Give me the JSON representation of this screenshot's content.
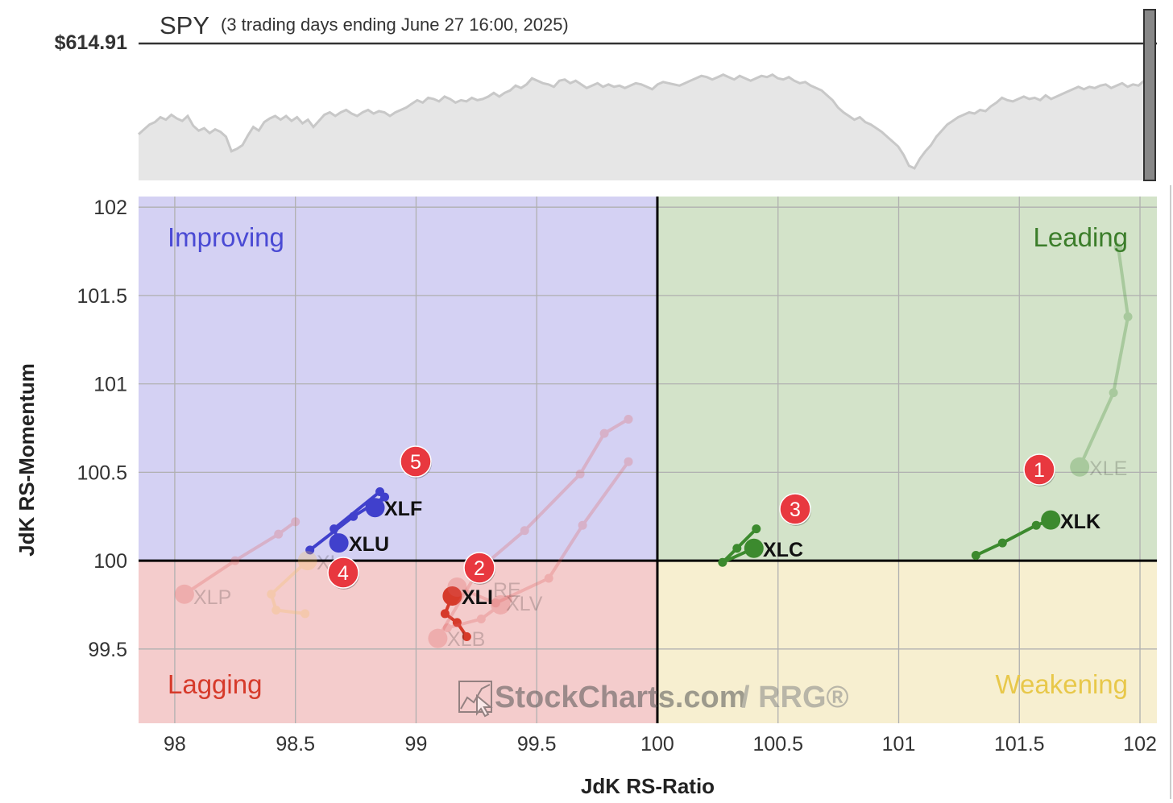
{
  "header": {
    "symbol": "SPY",
    "subtitle": "(3 trading days ending June 27 16:00, 2025)",
    "price": "$614.91"
  },
  "spy_line": [
    0.32,
    0.36,
    0.4,
    0.42,
    0.46,
    0.44,
    0.48,
    0.45,
    0.43,
    0.47,
    0.39,
    0.35,
    0.37,
    0.33,
    0.36,
    0.34,
    0.3,
    0.18,
    0.2,
    0.23,
    0.31,
    0.38,
    0.35,
    0.42,
    0.45,
    0.47,
    0.44,
    0.47,
    0.43,
    0.46,
    0.41,
    0.44,
    0.38,
    0.43,
    0.48,
    0.5,
    0.47,
    0.5,
    0.52,
    0.49,
    0.47,
    0.5,
    0.52,
    0.49,
    0.51,
    0.5,
    0.47,
    0.5,
    0.52,
    0.54,
    0.57,
    0.6,
    0.58,
    0.62,
    0.61,
    0.59,
    0.63,
    0.61,
    0.58,
    0.6,
    0.59,
    0.62,
    0.6,
    0.61,
    0.63,
    0.66,
    0.63,
    0.66,
    0.68,
    0.72,
    0.7,
    0.73,
    0.78,
    0.76,
    0.74,
    0.73,
    0.71,
    0.76,
    0.77,
    0.74,
    0.76,
    0.73,
    0.7,
    0.72,
    0.74,
    0.71,
    0.73,
    0.71,
    0.72,
    0.7,
    0.72,
    0.74,
    0.73,
    0.71,
    0.69,
    0.73,
    0.75,
    0.74,
    0.73,
    0.72,
    0.74,
    0.76,
    0.78,
    0.8,
    0.79,
    0.77,
    0.79,
    0.81,
    0.79,
    0.77,
    0.8,
    0.78,
    0.76,
    0.78,
    0.8,
    0.79,
    0.81,
    0.78,
    0.77,
    0.79,
    0.76,
    0.74,
    0.75,
    0.72,
    0.7,
    0.68,
    0.64,
    0.6,
    0.54,
    0.5,
    0.47,
    0.44,
    0.46,
    0.42,
    0.4,
    0.37,
    0.34,
    0.3,
    0.26,
    0.22,
    0.15,
    0.06,
    0.04,
    0.12,
    0.18,
    0.23,
    0.3,
    0.35,
    0.4,
    0.43,
    0.46,
    0.48,
    0.5,
    0.49,
    0.52,
    0.51,
    0.55,
    0.58,
    0.62,
    0.6,
    0.59,
    0.61,
    0.63,
    0.61,
    0.62,
    0.6,
    0.64,
    0.61,
    0.63,
    0.65,
    0.67,
    0.69,
    0.71,
    0.69,
    0.71,
    0.7,
    0.72,
    0.73,
    0.7,
    0.72,
    0.74,
    0.71,
    0.73,
    0.72,
    0.76
  ],
  "chart_data": {
    "type": "scatter",
    "title": "",
    "xlabel": "JdK RS-Ratio",
    "ylabel": "JdK RS-Momentum",
    "xlim": [
      97.85,
      102.07
    ],
    "ylim": [
      99.08,
      102.06
    ],
    "xticks": [
      98,
      98.5,
      99,
      99.5,
      100,
      100.5,
      101,
      101.5,
      102
    ],
    "xtick_labels": [
      "98",
      "98.5",
      "99",
      "99.5",
      "100",
      "100.5",
      "101",
      "101.5",
      "102"
    ],
    "yticks": [
      99.5,
      100,
      100.5,
      101,
      101.5,
      102
    ],
    "ytick_labels": [
      "99.5",
      "100",
      "100.5",
      "101",
      "101.5",
      "102"
    ],
    "grid": true,
    "quadrants": [
      {
        "label": "Improving",
        "color": "#d4d1f3",
        "text_color": "#4a4ad4"
      },
      {
        "label": "Leading",
        "color": "#d3e3c9",
        "text_color": "#3b7d2a"
      },
      {
        "label": "Lagging",
        "color": "#f4cccc",
        "text_color": "#d63a2a"
      },
      {
        "label": "Weakening",
        "color": "#f7efd0",
        "text_color": "#e8c84a"
      }
    ],
    "series": [
      {
        "name": "XLE",
        "color": "#3c8a2e",
        "faded": true,
        "points": [
          [
            101.91,
            101.77
          ],
          [
            101.95,
            101.38
          ],
          [
            101.89,
            100.95
          ],
          [
            101.75,
            100.53
          ]
        ]
      },
      {
        "name": "XLK",
        "color": "#3c8a2e",
        "faded": false,
        "points": [
          [
            101.32,
            100.03
          ],
          [
            101.43,
            100.1
          ],
          [
            101.57,
            100.2
          ],
          [
            101.63,
            100.23
          ]
        ]
      },
      {
        "name": "XLC",
        "color": "#3c8a2e",
        "faded": false,
        "points": [
          [
            100.41,
            100.18
          ],
          [
            100.33,
            100.07
          ],
          [
            100.27,
            99.99
          ],
          [
            100.4,
            100.07
          ]
        ]
      },
      {
        "name": "XLF",
        "color": "#4040cc",
        "faded": false,
        "points": [
          [
            98.56,
            100.06
          ],
          [
            98.74,
            100.25
          ],
          [
            98.87,
            100.36
          ],
          [
            98.83,
            100.3
          ]
        ]
      },
      {
        "name": "XLU",
        "color": "#4040cc",
        "faded": false,
        "points": [
          [
            98.85,
            100.39
          ],
          [
            98.66,
            100.18
          ],
          [
            98.68,
            100.1
          ]
        ]
      },
      {
        "name": "XLY",
        "color": "#f5c060",
        "faded": true,
        "points": [
          [
            98.54,
            99.7
          ],
          [
            98.42,
            99.72
          ],
          [
            98.4,
            99.81
          ],
          [
            98.55,
            100.0
          ]
        ]
      },
      {
        "name": "XLP",
        "color": "#e06060",
        "faded": true,
        "points": [
          [
            98.5,
            100.22
          ],
          [
            98.43,
            100.15
          ],
          [
            98.25,
            100.0
          ],
          [
            98.04,
            99.81
          ]
        ]
      },
      {
        "name": "XLI",
        "color": "#d63a2a",
        "faded": false,
        "points": [
          [
            99.21,
            99.57
          ],
          [
            99.17,
            99.65
          ],
          [
            99.12,
            99.7
          ],
          [
            99.15,
            99.8
          ]
        ]
      },
      {
        "name": "XLB",
        "color": "#e06060",
        "faded": true,
        "points": [
          [
            99.88,
            100.8
          ],
          [
            99.78,
            100.72
          ],
          [
            99.68,
            100.49
          ],
          [
            99.45,
            100.17
          ],
          [
            99.26,
            99.95
          ],
          [
            99.09,
            99.56
          ]
        ]
      },
      {
        "name": "XLRE",
        "color": "#e06060",
        "faded": true,
        "points": [
          [
            99.88,
            100.56
          ],
          [
            99.69,
            100.2
          ],
          [
            99.55,
            99.9
          ],
          [
            99.33,
            99.76
          ],
          [
            99.17,
            99.85
          ]
        ]
      },
      {
        "name": "XLV",
        "color": "#e06060",
        "faded": true,
        "points": [
          [
            99.13,
            99.62
          ],
          [
            99.27,
            99.67
          ],
          [
            99.38,
            99.78
          ],
          [
            99.35,
            99.75
          ]
        ]
      }
    ],
    "series_labels": [
      {
        "text": "XLE",
        "faded": true
      },
      {
        "text": "XLK",
        "faded": false
      },
      {
        "text": "XLC",
        "faded": false
      },
      {
        "text": "XLF",
        "faded": false
      },
      {
        "text": "XLU",
        "faded": false
      },
      {
        "text": "XL",
        "faded": true
      },
      {
        "text": "XLP",
        "faded": true
      },
      {
        "text": "XLI",
        "faded": false
      },
      {
        "text": "XLB",
        "faded": true
      },
      {
        "text": "RE",
        "faded": true
      },
      {
        "text": "XLV",
        "faded": true
      }
    ],
    "annotations": [
      "1",
      "2",
      "3",
      "4",
      "5"
    ]
  },
  "watermark": {
    "text": "StockCharts.com",
    "suffix": "/ RRG®"
  }
}
